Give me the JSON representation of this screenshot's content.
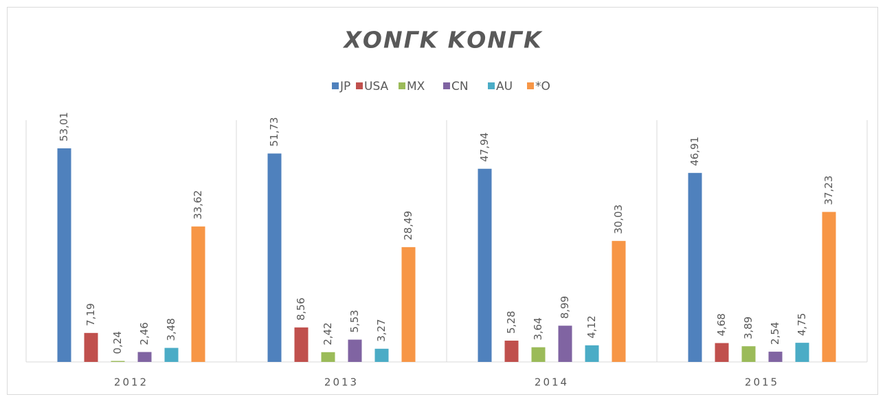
{
  "chart_data": {
    "type": "bar",
    "title": "ΧΟΝΓΚ ΚΟΝΓΚ",
    "categories": [
      "2012",
      "2013",
      "2014",
      "2015"
    ],
    "series": [
      {
        "name": "JP",
        "color": "#4f81bd",
        "values": [
          53.01,
          51.73,
          47.94,
          46.91
        ],
        "value_labels": [
          "53,01",
          "51,73",
          "47,94",
          "46,91"
        ]
      },
      {
        "name": "USA",
        "color": "#c0504d",
        "values": [
          7.19,
          8.56,
          5.28,
          4.68
        ],
        "value_labels": [
          "7,19",
          "8,56",
          "5,28",
          "4,68"
        ]
      },
      {
        "name": "MX",
        "color": "#9bbb59",
        "values": [
          0.24,
          2.42,
          3.64,
          3.89
        ],
        "value_labels": [
          "0,24",
          "2,42",
          "3,64",
          "3,89"
        ]
      },
      {
        "name": "CN",
        "color": "#8064a2",
        "values": [
          2.46,
          5.53,
          8.99,
          2.54
        ],
        "value_labels": [
          "2,46",
          "5,53",
          "8,99",
          "2,54"
        ]
      },
      {
        "name": "AU",
        "color": "#4bacc6",
        "values": [
          3.48,
          3.27,
          4.12,
          4.75
        ],
        "value_labels": [
          "3,48",
          "3,27",
          "4,12",
          "4,75"
        ]
      },
      {
        "name": "*O",
        "color": "#f79646",
        "values": [
          33.62,
          28.49,
          30.03,
          37.23
        ],
        "value_labels": [
          "33,62",
          "28,49",
          "30,03",
          "37,23"
        ]
      }
    ],
    "ylim": [
      0,
      60
    ],
    "legend": "top"
  }
}
